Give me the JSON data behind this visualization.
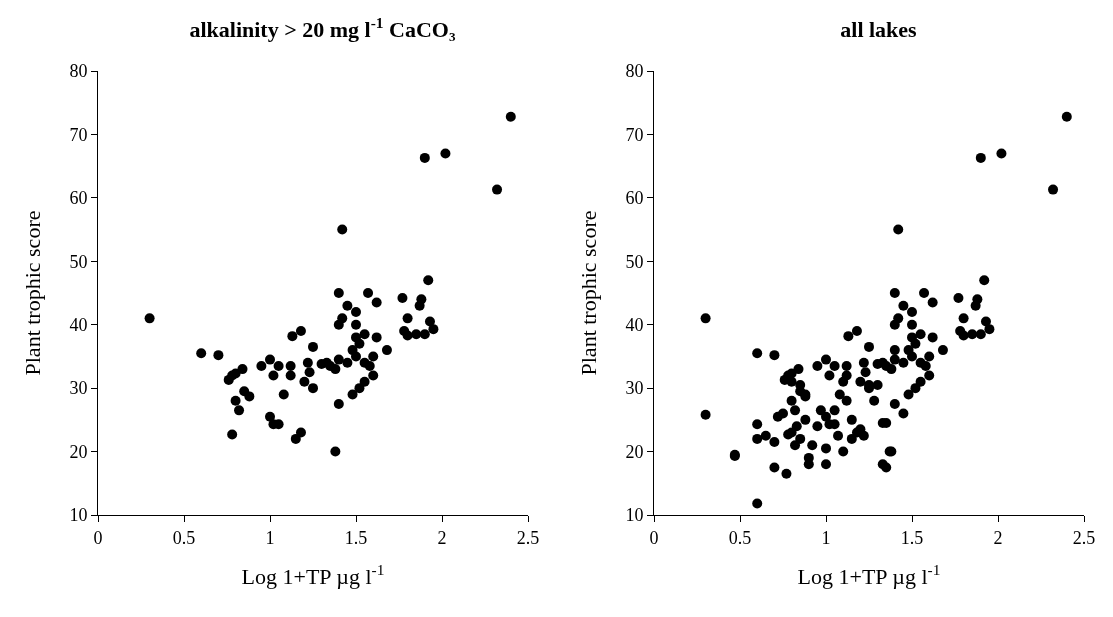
{
  "chart_data": [
    {
      "type": "scatter",
      "title": "alkalinity > 20 mg l$^{-1}$ CaCO₃",
      "xlabel": "Log 1+TP µg l$^{-1}$",
      "ylabel": "Plant trophic score",
      "marker": "circle",
      "grid": false,
      "xlim": [
        0,
        2.5
      ],
      "xticks": [
        0,
        0.5,
        1,
        1.5,
        2,
        2.5
      ],
      "ylim": [
        10,
        80
      ],
      "yticks": [
        10,
        20,
        30,
        40,
        50,
        60,
        70,
        80
      ],
      "series": [
        {
          "color": "#000000",
          "x": [
            0.3,
            0.6,
            0.7,
            0.76,
            0.78,
            0.8,
            0.84,
            0.8,
            0.82,
            0.85,
            0.88,
            0.78,
            0.95,
            1.0,
            1.02,
            1.05,
            1.0,
            1.02,
            1.05,
            1.08,
            1.12,
            1.12,
            1.13,
            1.18,
            1.15,
            1.18,
            1.2,
            1.22,
            1.23,
            1.25,
            1.25,
            1.3,
            1.33,
            1.35,
            1.38,
            1.38,
            1.4,
            1.4,
            1.4,
            1.42,
            1.42,
            1.4,
            1.45,
            1.45,
            1.48,
            1.48,
            1.5,
            1.5,
            1.5,
            1.5,
            1.52,
            1.52,
            1.55,
            1.55,
            1.55,
            1.57,
            1.58,
            1.6,
            1.6,
            1.62,
            1.62,
            1.68,
            1.77,
            1.78,
            1.8,
            1.8,
            1.85,
            1.87,
            1.88,
            1.9,
            1.9,
            1.92,
            1.93,
            1.95,
            2.02,
            2.32,
            2.4
          ],
          "values": [
            41,
            35.5,
            35.2,
            31.3,
            32,
            32.3,
            33,
            28,
            26.5,
            29.5,
            28.7,
            22.7,
            33.5,
            34.5,
            32,
            33.5,
            25.5,
            24.3,
            24.3,
            29,
            33.5,
            32,
            38.2,
            39,
            22,
            23,
            31,
            34,
            32.5,
            30,
            36.5,
            33.8,
            34,
            33.5,
            33,
            20,
            27.5,
            34.5,
            45,
            55,
            41,
            40,
            43,
            34,
            36,
            29,
            42,
            40,
            38,
            35,
            37,
            30,
            31,
            34,
            38.5,
            45,
            33.5,
            32,
            35,
            43.5,
            38,
            36,
            44.2,
            39,
            38.3,
            41,
            38.5,
            43,
            44,
            38.5,
            66.3,
            47,
            40.5,
            39.3,
            67,
            61.3,
            72.8
          ]
        }
      ]
    },
    {
      "type": "scatter",
      "title": "all lakes",
      "xlabel": "Log 1+TP µg l$^{-1}$",
      "ylabel": "Plant trophic score",
      "marker": "circle",
      "grid": false,
      "xlim": [
        0,
        2.5
      ],
      "xticks": [
        0,
        0.5,
        1,
        1.5,
        2,
        2.5
      ],
      "ylim": [
        10,
        80
      ],
      "yticks": [
        10,
        20,
        30,
        40,
        50,
        60,
        70,
        80
      ],
      "series": [
        {
          "color": "#000000",
          "x": [
            0.3,
            0.6,
            0.7,
            0.76,
            0.78,
            0.8,
            0.84,
            0.8,
            0.82,
            0.85,
            0.88,
            0.78,
            0.95,
            1.0,
            1.02,
            1.05,
            1.0,
            1.02,
            1.05,
            1.08,
            1.12,
            1.12,
            1.13,
            1.18,
            1.15,
            1.18,
            1.2,
            1.22,
            1.23,
            1.25,
            1.25,
            1.3,
            1.33,
            1.35,
            1.38,
            1.38,
            1.4,
            1.4,
            1.4,
            1.42,
            1.42,
            1.4,
            1.45,
            1.45,
            1.48,
            1.48,
            1.5,
            1.5,
            1.5,
            1.5,
            1.52,
            1.52,
            1.55,
            1.55,
            1.55,
            1.57,
            1.58,
            1.6,
            1.6,
            1.62,
            1.62,
            1.68,
            1.77,
            1.78,
            1.8,
            1.8,
            1.85,
            1.87,
            1.88,
            1.9,
            1.9,
            1.92,
            1.93,
            1.95,
            2.02,
            2.32,
            2.4,
            0.3,
            0.47,
            0.47,
            0.6,
            0.6,
            0.6,
            0.65,
            0.7,
            0.7,
            0.72,
            0.75,
            0.77,
            0.8,
            0.82,
            0.83,
            0.85,
            0.88,
            0.9,
            0.9,
            0.92,
            0.95,
            0.97,
            1.0,
            1.0,
            1.05,
            1.07,
            1.1,
            1.12,
            1.15,
            1.2,
            1.22,
            1.25,
            1.28,
            1.33,
            1.33,
            1.35,
            1.35,
            1.37,
            1.3,
            1.4,
            1.45,
            0.85,
            0.88,
            0.8,
            1.1
          ],
          "values": [
            41,
            35.5,
            35.2,
            31.3,
            32,
            32.3,
            33,
            28,
            26.5,
            29.5,
            28.7,
            22.7,
            33.5,
            34.5,
            32,
            33.5,
            25.5,
            24.3,
            24.3,
            29,
            33.5,
            32,
            38.2,
            39,
            22,
            23,
            31,
            34,
            32.5,
            30,
            36.5,
            33.8,
            34,
            33.5,
            33,
            20,
            27.5,
            34.5,
            45,
            55,
            41,
            40,
            43,
            34,
            36,
            29,
            42,
            40,
            38,
            35,
            37,
            30,
            31,
            34,
            38.5,
            45,
            33.5,
            32,
            35,
            43.5,
            38,
            36,
            44.2,
            39,
            38.3,
            41,
            38.5,
            43,
            44,
            38.5,
            66.3,
            47,
            40.5,
            39.3,
            67,
            61.3,
            72.8,
            25.8,
            19.5,
            19.3,
            24.3,
            22,
            11.8,
            22.5,
            21.5,
            17.5,
            25.5,
            26,
            16.5,
            23,
            21,
            24,
            22,
            25,
            19,
            18,
            21,
            24,
            26.5,
            20.5,
            18,
            26.5,
            22.5,
            20,
            28,
            25,
            23.5,
            22.5,
            30.5,
            28,
            24.5,
            18,
            17.5,
            24.5,
            20,
            30.5,
            36,
            26,
            30.5,
            29,
            31,
            31
          ]
        }
      ]
    }
  ]
}
